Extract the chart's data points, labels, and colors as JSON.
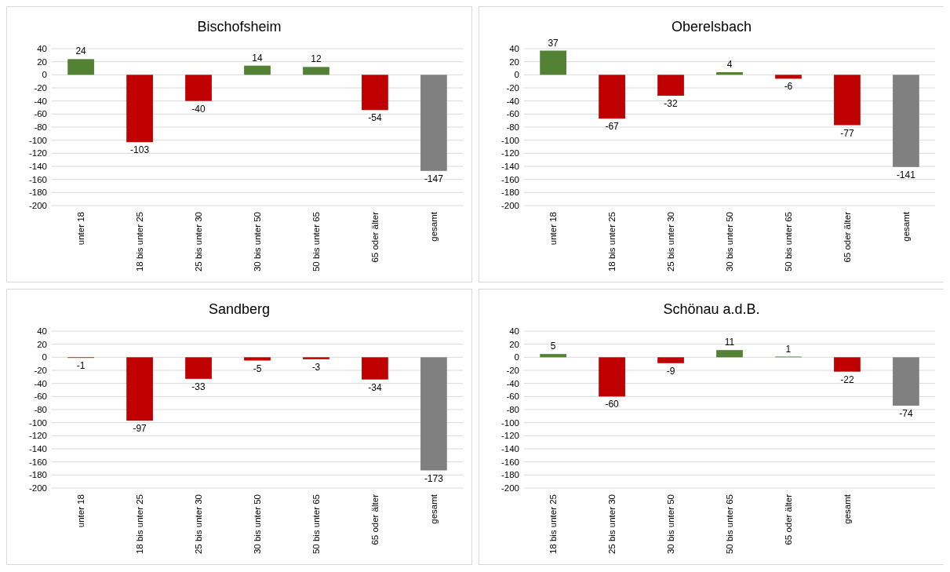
{
  "chart_data": [
    {
      "type": "bar",
      "title": "Bischofsheim",
      "categories": [
        "unter 18",
        "18 bis unter 25",
        "25 bis unter 30",
        "30 bis unter 50",
        "50 bis unter 65",
        "65 oder älter",
        "gesamt"
      ],
      "values": [
        24,
        -103,
        -40,
        14,
        12,
        -54,
        -147
      ],
      "colors": [
        "#548235",
        "#c00000",
        "#c00000",
        "#548235",
        "#548235",
        "#c00000",
        "#808080"
      ],
      "ylim": [
        -200,
        40
      ],
      "yticks": [
        -200,
        -180,
        -160,
        -140,
        -120,
        -100,
        -80,
        -60,
        -40,
        -20,
        0,
        20,
        40
      ],
      "grid": "y",
      "data_labels": true
    },
    {
      "type": "bar",
      "title": "Oberelsbach",
      "categories": [
        "unter 18",
        "18 bis unter 25",
        "25 bis unter 30",
        "30 bis unter 50",
        "50 bis unter 65",
        "65 oder älter",
        "gesamt"
      ],
      "values": [
        37,
        -67,
        -32,
        4,
        -6,
        -77,
        -141
      ],
      "colors": [
        "#548235",
        "#c00000",
        "#c00000",
        "#548235",
        "#c00000",
        "#c00000",
        "#808080"
      ],
      "ylim": [
        -200,
        40
      ],
      "yticks": [
        -200,
        -180,
        -160,
        -140,
        -120,
        -100,
        -80,
        -60,
        -40,
        -20,
        0,
        20,
        40
      ],
      "grid": "y",
      "data_labels": true
    },
    {
      "type": "bar",
      "title": "Sandberg",
      "categories": [
        "unter 18",
        "18 bis unter 25",
        "25 bis unter 30",
        "30 bis unter 50",
        "50 bis unter 65",
        "65 oder älter",
        "gesamt"
      ],
      "values": [
        -1,
        -97,
        -33,
        -5,
        -3,
        -34,
        -173
      ],
      "colors": [
        "#c00000",
        "#c00000",
        "#c00000",
        "#c00000",
        "#c00000",
        "#c00000",
        "#808080"
      ],
      "ylim": [
        -200,
        40
      ],
      "yticks": [
        -200,
        -180,
        -160,
        -140,
        -120,
        -100,
        -80,
        -60,
        -40,
        -20,
        0,
        20,
        40
      ],
      "grid": "y",
      "data_labels": true
    },
    {
      "type": "bar",
      "title": "Schönau a.d.B.",
      "categories": [
        "18 bis unter 25",
        "25 bis unter 30",
        "30 bis unter 50",
        "50 bis unter 65",
        "65 oder älter",
        "gesamt",
        null
      ],
      "values": [
        5,
        -60,
        -9,
        11,
        1,
        -22,
        -74
      ],
      "colors": [
        "#548235",
        "#c00000",
        "#c00000",
        "#548235",
        "#548235",
        "#c00000",
        "#808080"
      ],
      "ylim": [
        -200,
        40
      ],
      "yticks": [
        -200,
        -180,
        -160,
        -140,
        -120,
        -100,
        -80,
        -60,
        -40,
        -20,
        0,
        20,
        40
      ],
      "grid": "y",
      "data_labels": true
    }
  ]
}
